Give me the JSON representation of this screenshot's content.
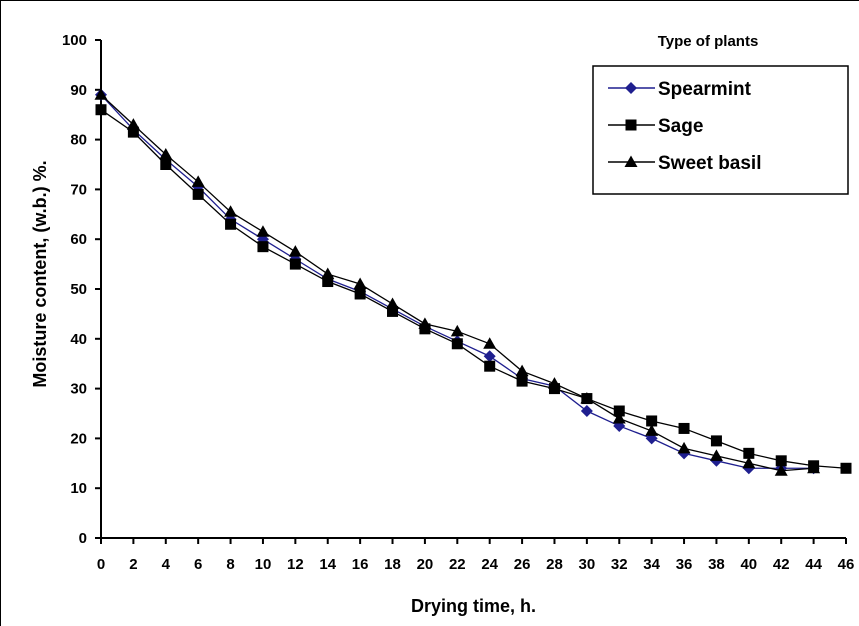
{
  "chart_data": {
    "type": "line",
    "xlabel": "Drying time, h.",
    "ylabel": "Moisture content, (w.b.) %.",
    "legend_title": "Type of plants",
    "legend_position": "top-right",
    "grid": false,
    "xlim": [
      0,
      46
    ],
    "ylim": [
      0,
      100
    ],
    "x_ticks": [
      0,
      2,
      4,
      6,
      8,
      10,
      12,
      14,
      16,
      18,
      20,
      22,
      24,
      26,
      28,
      30,
      32,
      34,
      36,
      38,
      40,
      42,
      44,
      46
    ],
    "y_ticks": [
      0,
      10,
      20,
      30,
      40,
      50,
      60,
      70,
      80,
      90,
      100
    ],
    "series": [
      {
        "name": "Spearmint",
        "color": "#1f1f8f",
        "marker": "diamond",
        "x": [
          0,
          2,
          4,
          6,
          8,
          10,
          12,
          14,
          16,
          18,
          20,
          22,
          24,
          26,
          28,
          30,
          32,
          34,
          36,
          38,
          40,
          42,
          44
        ],
        "values": [
          89,
          82,
          76,
          70.5,
          64,
          60,
          56,
          52,
          49.5,
          46,
          42.5,
          39.5,
          36.5,
          32,
          30.5,
          25.5,
          22.5,
          20,
          17,
          15.5,
          14,
          14,
          14
        ]
      },
      {
        "name": "Sage",
        "color": "#000000",
        "marker": "square",
        "x": [
          0,
          2,
          4,
          6,
          8,
          10,
          12,
          14,
          16,
          18,
          20,
          22,
          24,
          26,
          28,
          30,
          32,
          34,
          36,
          38,
          40,
          42,
          44,
          46
        ],
        "values": [
          86,
          81.5,
          75,
          69,
          63,
          58.5,
          55,
          51.5,
          49,
          45.5,
          42,
          39,
          34.5,
          31.5,
          30,
          28,
          25.5,
          23.5,
          22,
          19.5,
          17,
          15.5,
          14.5,
          14
        ]
      },
      {
        "name": "Sweet basil",
        "color": "#000000",
        "marker": "triangle",
        "x": [
          0,
          2,
          4,
          6,
          8,
          10,
          12,
          14,
          16,
          18,
          20,
          22,
          24,
          26,
          28,
          30,
          32,
          34,
          36,
          38,
          40,
          42,
          44
        ],
        "values": [
          89,
          83,
          77,
          71.5,
          65.5,
          61.5,
          57.5,
          53,
          51,
          47,
          43,
          41.5,
          39,
          33.5,
          31,
          28,
          24,
          21.5,
          18,
          16.5,
          15,
          13.5,
          14
        ]
      }
    ]
  }
}
